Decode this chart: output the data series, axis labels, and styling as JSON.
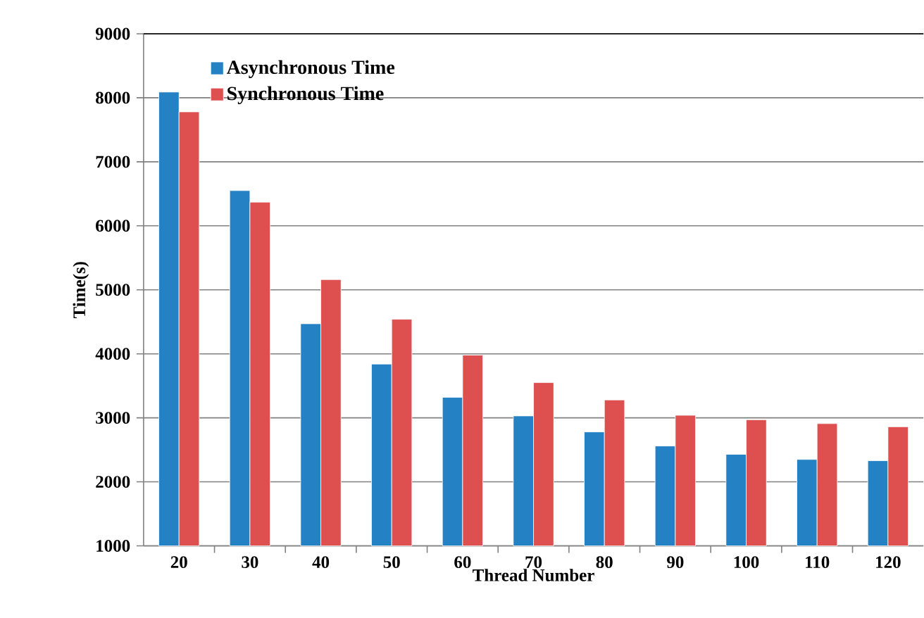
{
  "chart_data": {
    "type": "bar",
    "xlabel": "Thread Number",
    "ylabel": "Time(s)",
    "categories": [
      "20",
      "30",
      "40",
      "50",
      "60",
      "70",
      "80",
      "90",
      "100",
      "110",
      "120"
    ],
    "series": [
      {
        "name": "Asynchronous Time",
        "color": "#2381c4",
        "values": [
          8090,
          6550,
          4470,
          3840,
          3320,
          3030,
          2780,
          2560,
          2430,
          2350,
          2330
        ]
      },
      {
        "name": "Synchronous Time",
        "color": "#de4f4f",
        "values": [
          7780,
          6370,
          5160,
          4540,
          3980,
          3550,
          3280,
          3040,
          2970,
          2910,
          2860
        ]
      }
    ],
    "ylim": [
      1000,
      9000
    ],
    "yticks": [
      1000,
      2000,
      3000,
      4000,
      5000,
      6000,
      7000,
      8000,
      9000
    ],
    "grid": "y",
    "legend": "top left"
  }
}
